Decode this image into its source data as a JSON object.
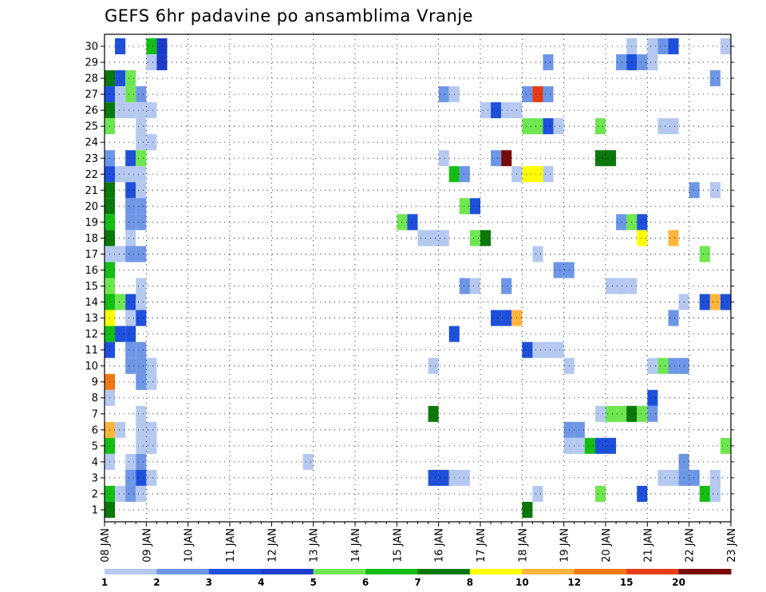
{
  "chart_data": {
    "type": "heatmap",
    "title": "GEFS 6hr padavine po ansamblima Vranje",
    "xlabel": "",
    "ylabel": "",
    "y_ticks": [
      "1",
      "2",
      "3",
      "4",
      "5",
      "6",
      "7",
      "8",
      "9",
      "10",
      "11",
      "12",
      "13",
      "14",
      "15",
      "16",
      "17",
      "18",
      "19",
      "20",
      "21",
      "22",
      "23",
      "24",
      "25",
      "26",
      "27",
      "28",
      "29",
      "30"
    ],
    "x_ticks": [
      "08 JAN",
      "09 JAN",
      "10 JAN",
      "11 JAN",
      "12 JAN",
      "13 JAN",
      "14 JAN",
      "15 JAN",
      "16 JAN",
      "17 JAN",
      "18 JAN",
      "19 JAN",
      "20 JAN",
      "21 JAN",
      "22 JAN",
      "23 JAN"
    ],
    "time_range_days": [
      0,
      15
    ],
    "step_hours": 6,
    "grid": true,
    "legend_position": "bottom",
    "colorbar": {
      "labels": [
        "1",
        "2",
        "3",
        "4",
        "5",
        "6",
        "7",
        "8",
        "10",
        "12",
        "15",
        "20"
      ],
      "colors": [
        "#b4c8f0",
        "#6e96e6",
        "#1e50dc",
        "#1e3ccc",
        "#6ee650",
        "#14be14",
        "#0a780a",
        "#ffff00",
        "#ffb43c",
        "#f07814",
        "#e63c14",
        "#7a0a0a"
      ]
    },
    "cells": [
      {
        "m": 30,
        "s": 1,
        "c": 2
      },
      {
        "m": 30,
        "s": 4,
        "c": 5
      },
      {
        "m": 30,
        "s": 5,
        "c": 3
      },
      {
        "m": 30,
        "s": 50,
        "c": 0
      },
      {
        "m": 30,
        "s": 52,
        "c": 0
      },
      {
        "m": 30,
        "s": 53,
        "c": 1
      },
      {
        "m": 30,
        "s": 54,
        "c": 2
      },
      {
        "m": 30,
        "s": 59,
        "c": 0
      },
      {
        "m": 29,
        "s": 4,
        "c": 0
      },
      {
        "m": 29,
        "s": 5,
        "c": 3
      },
      {
        "m": 29,
        "s": 42,
        "c": 1
      },
      {
        "m": 29,
        "s": 49,
        "c": 1
      },
      {
        "m": 29,
        "s": 50,
        "c": 2
      },
      {
        "m": 29,
        "s": 51,
        "c": 1
      },
      {
        "m": 29,
        "s": 52,
        "c": 0
      },
      {
        "m": 28,
        "s": 0,
        "c": 6
      },
      {
        "m": 28,
        "s": 1,
        "c": 2
      },
      {
        "m": 28,
        "s": 2,
        "c": 4
      },
      {
        "m": 28,
        "s": 58,
        "c": 1
      },
      {
        "m": 27,
        "s": 0,
        "c": 2
      },
      {
        "m": 27,
        "s": 1,
        "c": 0
      },
      {
        "m": 27,
        "s": 2,
        "c": 4
      },
      {
        "m": 27,
        "s": 3,
        "c": 1
      },
      {
        "m": 27,
        "s": 32,
        "c": 1
      },
      {
        "m": 27,
        "s": 33,
        "c": 0
      },
      {
        "m": 27,
        "s": 40,
        "c": 1
      },
      {
        "m": 27,
        "s": 41,
        "c": 10
      },
      {
        "m": 27,
        "s": 42,
        "c": 1
      },
      {
        "m": 26,
        "s": 0,
        "c": 6
      },
      {
        "m": 26,
        "s": 1,
        "c": 0
      },
      {
        "m": 26,
        "s": 2,
        "c": 0
      },
      {
        "m": 26,
        "s": 3,
        "c": 0
      },
      {
        "m": 26,
        "s": 4,
        "c": 0
      },
      {
        "m": 26,
        "s": 36,
        "c": 0
      },
      {
        "m": 26,
        "s": 37,
        "c": 2
      },
      {
        "m": 26,
        "s": 38,
        "c": 0
      },
      {
        "m": 26,
        "s": 39,
        "c": 0
      },
      {
        "m": 25,
        "s": 0,
        "c": 4
      },
      {
        "m": 25,
        "s": 3,
        "c": 0
      },
      {
        "m": 25,
        "s": 40,
        "c": 4
      },
      {
        "m": 25,
        "s": 41,
        "c": 4
      },
      {
        "m": 25,
        "s": 42,
        "c": 2
      },
      {
        "m": 25,
        "s": 43,
        "c": 0
      },
      {
        "m": 25,
        "s": 47,
        "c": 4
      },
      {
        "m": 25,
        "s": 53,
        "c": 0
      },
      {
        "m": 25,
        "s": 54,
        "c": 0
      },
      {
        "m": 24,
        "s": 3,
        "c": 0
      },
      {
        "m": 24,
        "s": 4,
        "c": 0
      },
      {
        "m": 23,
        "s": 0,
        "c": 1
      },
      {
        "m": 23,
        "s": 2,
        "c": 2
      },
      {
        "m": 23,
        "s": 3,
        "c": 4
      },
      {
        "m": 23,
        "s": 32,
        "c": 0
      },
      {
        "m": 23,
        "s": 37,
        "c": 1
      },
      {
        "m": 23,
        "s": 38,
        "c": 11
      },
      {
        "m": 23,
        "s": 47,
        "c": 6
      },
      {
        "m": 23,
        "s": 48,
        "c": 6
      },
      {
        "m": 22,
        "s": 0,
        "c": 2
      },
      {
        "m": 22,
        "s": 1,
        "c": 0
      },
      {
        "m": 22,
        "s": 2,
        "c": 0
      },
      {
        "m": 22,
        "s": 3,
        "c": 0
      },
      {
        "m": 22,
        "s": 33,
        "c": 5
      },
      {
        "m": 22,
        "s": 34,
        "c": 1
      },
      {
        "m": 22,
        "s": 39,
        "c": 0
      },
      {
        "m": 22,
        "s": 40,
        "c": 7
      },
      {
        "m": 22,
        "s": 41,
        "c": 7
      },
      {
        "m": 22,
        "s": 42,
        "c": 0
      },
      {
        "m": 21,
        "s": 0,
        "c": 6
      },
      {
        "m": 21,
        "s": 2,
        "c": 2
      },
      {
        "m": 21,
        "s": 3,
        "c": 0
      },
      {
        "m": 21,
        "s": 56,
        "c": 1
      },
      {
        "m": 21,
        "s": 58,
        "c": 0
      },
      {
        "m": 20,
        "s": 0,
        "c": 6
      },
      {
        "m": 20,
        "s": 2,
        "c": 1
      },
      {
        "m": 20,
        "s": 3,
        "c": 1
      },
      {
        "m": 20,
        "s": 34,
        "c": 4
      },
      {
        "m": 20,
        "s": 35,
        "c": 2
      },
      {
        "m": 19,
        "s": 0,
        "c": 5
      },
      {
        "m": 19,
        "s": 2,
        "c": 1
      },
      {
        "m": 19,
        "s": 3,
        "c": 1
      },
      {
        "m": 19,
        "s": 28,
        "c": 4
      },
      {
        "m": 19,
        "s": 29,
        "c": 2
      },
      {
        "m": 19,
        "s": 49,
        "c": 1
      },
      {
        "m": 19,
        "s": 50,
        "c": 4
      },
      {
        "m": 19,
        "s": 51,
        "c": 2
      },
      {
        "m": 18,
        "s": 0,
        "c": 6
      },
      {
        "m": 18,
        "s": 2,
        "c": 0
      },
      {
        "m": 18,
        "s": 30,
        "c": 0
      },
      {
        "m": 18,
        "s": 31,
        "c": 0
      },
      {
        "m": 18,
        "s": 32,
        "c": 0
      },
      {
        "m": 18,
        "s": 35,
        "c": 4
      },
      {
        "m": 18,
        "s": 36,
        "c": 6
      },
      {
        "m": 18,
        "s": 51,
        "c": 7
      },
      {
        "m": 18,
        "s": 54,
        "c": 8
      },
      {
        "m": 17,
        "s": 0,
        "c": 0
      },
      {
        "m": 17,
        "s": 1,
        "c": 0
      },
      {
        "m": 17,
        "s": 2,
        "c": 1
      },
      {
        "m": 17,
        "s": 3,
        "c": 1
      },
      {
        "m": 17,
        "s": 41,
        "c": 0
      },
      {
        "m": 17,
        "s": 57,
        "c": 4
      },
      {
        "m": 16,
        "s": 0,
        "c": 5
      },
      {
        "m": 16,
        "s": 43,
        "c": 1
      },
      {
        "m": 16,
        "s": 44,
        "c": 1
      },
      {
        "m": 15,
        "s": 0,
        "c": 4
      },
      {
        "m": 15,
        "s": 3,
        "c": 0
      },
      {
        "m": 15,
        "s": 34,
        "c": 1
      },
      {
        "m": 15,
        "s": 35,
        "c": 0
      },
      {
        "m": 15,
        "s": 38,
        "c": 1
      },
      {
        "m": 15,
        "s": 48,
        "c": 0
      },
      {
        "m": 15,
        "s": 49,
        "c": 0
      },
      {
        "m": 15,
        "s": 50,
        "c": 0
      },
      {
        "m": 14,
        "s": 0,
        "c": 5
      },
      {
        "m": 14,
        "s": 1,
        "c": 4
      },
      {
        "m": 14,
        "s": 2,
        "c": 2
      },
      {
        "m": 14,
        "s": 3,
        "c": 0
      },
      {
        "m": 14,
        "s": 55,
        "c": 0
      },
      {
        "m": 14,
        "s": 57,
        "c": 2
      },
      {
        "m": 14,
        "s": 58,
        "c": 8
      },
      {
        "m": 14,
        "s": 59,
        "c": 2
      },
      {
        "m": 13,
        "s": 0,
        "c": 7
      },
      {
        "m": 13,
        "s": 2,
        "c": 0
      },
      {
        "m": 13,
        "s": 3,
        "c": 2
      },
      {
        "m": 13,
        "s": 37,
        "c": 2
      },
      {
        "m": 13,
        "s": 38,
        "c": 2
      },
      {
        "m": 13,
        "s": 39,
        "c": 8
      },
      {
        "m": 13,
        "s": 54,
        "c": 1
      },
      {
        "m": 12,
        "s": 0,
        "c": 5
      },
      {
        "m": 12,
        "s": 1,
        "c": 2
      },
      {
        "m": 12,
        "s": 2,
        "c": 2
      },
      {
        "m": 12,
        "s": 33,
        "c": 2
      },
      {
        "m": 11,
        "s": 0,
        "c": 2
      },
      {
        "m": 11,
        "s": 2,
        "c": 1
      },
      {
        "m": 11,
        "s": 3,
        "c": 1
      },
      {
        "m": 11,
        "s": 40,
        "c": 2
      },
      {
        "m": 11,
        "s": 41,
        "c": 0
      },
      {
        "m": 11,
        "s": 42,
        "c": 0
      },
      {
        "m": 11,
        "s": 43,
        "c": 0
      },
      {
        "m": 10,
        "s": 2,
        "c": 1
      },
      {
        "m": 10,
        "s": 3,
        "c": 1
      },
      {
        "m": 10,
        "s": 4,
        "c": 0
      },
      {
        "m": 10,
        "s": 31,
        "c": 0
      },
      {
        "m": 10,
        "s": 44,
        "c": 0
      },
      {
        "m": 10,
        "s": 52,
        "c": 0
      },
      {
        "m": 10,
        "s": 53,
        "c": 4
      },
      {
        "m": 10,
        "s": 54,
        "c": 1
      },
      {
        "m": 10,
        "s": 55,
        "c": 1
      },
      {
        "m": 9,
        "s": 0,
        "c": 9
      },
      {
        "m": 9,
        "s": 3,
        "c": 1
      },
      {
        "m": 9,
        "s": 4,
        "c": 0
      },
      {
        "m": 8,
        "s": 0,
        "c": 0
      },
      {
        "m": 8,
        "s": 52,
        "c": 2
      },
      {
        "m": 7,
        "s": 3,
        "c": 0
      },
      {
        "m": 7,
        "s": 31,
        "c": 6
      },
      {
        "m": 7,
        "s": 47,
        "c": 0
      },
      {
        "m": 7,
        "s": 48,
        "c": 4
      },
      {
        "m": 7,
        "s": 49,
        "c": 4
      },
      {
        "m": 7,
        "s": 50,
        "c": 6
      },
      {
        "m": 7,
        "s": 51,
        "c": 4
      },
      {
        "m": 7,
        "s": 52,
        "c": 1
      },
      {
        "m": 6,
        "s": 0,
        "c": 8
      },
      {
        "m": 6,
        "s": 1,
        "c": 0
      },
      {
        "m": 6,
        "s": 3,
        "c": 0
      },
      {
        "m": 6,
        "s": 4,
        "c": 0
      },
      {
        "m": 6,
        "s": 44,
        "c": 1
      },
      {
        "m": 6,
        "s": 45,
        "c": 1
      },
      {
        "m": 5,
        "s": 0,
        "c": 5
      },
      {
        "m": 5,
        "s": 3,
        "c": 0
      },
      {
        "m": 5,
        "s": 4,
        "c": 0
      },
      {
        "m": 5,
        "s": 44,
        "c": 0
      },
      {
        "m": 5,
        "s": 45,
        "c": 0
      },
      {
        "m": 5,
        "s": 46,
        "c": 5
      },
      {
        "m": 5,
        "s": 47,
        "c": 2
      },
      {
        "m": 5,
        "s": 48,
        "c": 2
      },
      {
        "m": 5,
        "s": 59,
        "c": 4
      },
      {
        "m": 4,
        "s": 0,
        "c": 0
      },
      {
        "m": 4,
        "s": 2,
        "c": 0
      },
      {
        "m": 4,
        "s": 3,
        "c": 1
      },
      {
        "m": 4,
        "s": 19,
        "c": 0
      },
      {
        "m": 4,
        "s": 55,
        "c": 1
      },
      {
        "m": 3,
        "s": 2,
        "c": 1
      },
      {
        "m": 3,
        "s": 3,
        "c": 2
      },
      {
        "m": 3,
        "s": 4,
        "c": 0
      },
      {
        "m": 3,
        "s": 31,
        "c": 2
      },
      {
        "m": 3,
        "s": 32,
        "c": 2
      },
      {
        "m": 3,
        "s": 33,
        "c": 0
      },
      {
        "m": 3,
        "s": 34,
        "c": 0
      },
      {
        "m": 3,
        "s": 53,
        "c": 0
      },
      {
        "m": 3,
        "s": 54,
        "c": 0
      },
      {
        "m": 3,
        "s": 55,
        "c": 1
      },
      {
        "m": 3,
        "s": 56,
        "c": 1
      },
      {
        "m": 3,
        "s": 58,
        "c": 0
      },
      {
        "m": 2,
        "s": 0,
        "c": 5
      },
      {
        "m": 2,
        "s": 1,
        "c": 0
      },
      {
        "m": 2,
        "s": 2,
        "c": 1
      },
      {
        "m": 2,
        "s": 3,
        "c": 0
      },
      {
        "m": 2,
        "s": 41,
        "c": 0
      },
      {
        "m": 2,
        "s": 47,
        "c": 4
      },
      {
        "m": 2,
        "s": 51,
        "c": 2
      },
      {
        "m": 2,
        "s": 57,
        "c": 5
      },
      {
        "m": 2,
        "s": 58,
        "c": 0
      },
      {
        "m": 1,
        "s": 0,
        "c": 6
      },
      {
        "m": 1,
        "s": 40,
        "c": 6
      }
    ]
  }
}
